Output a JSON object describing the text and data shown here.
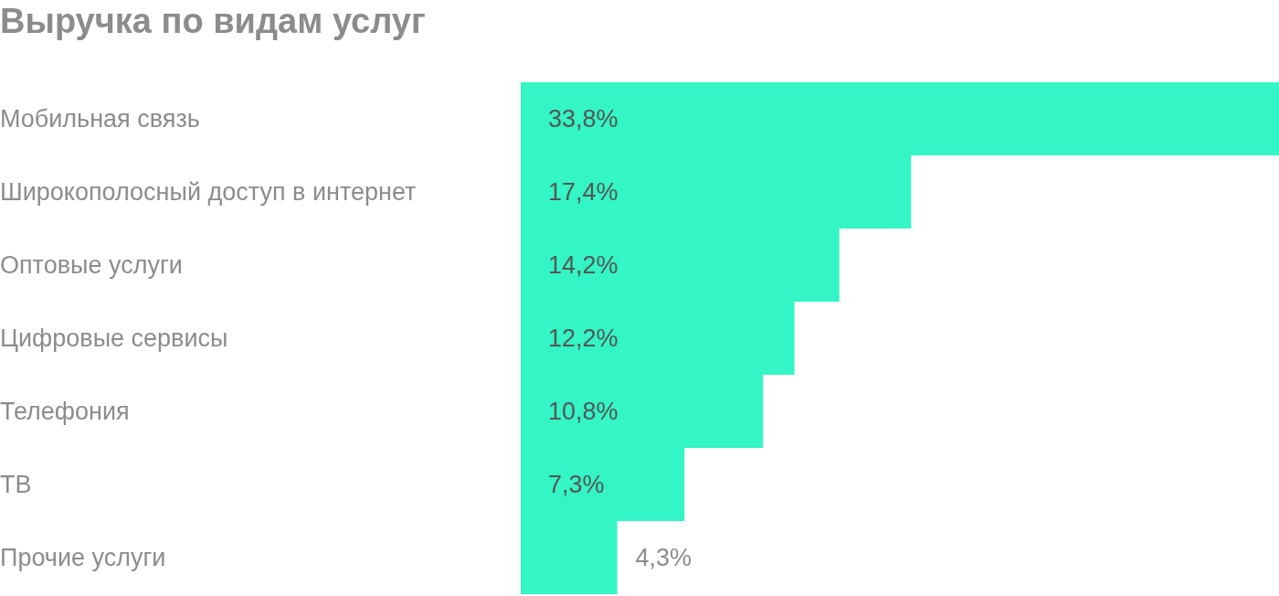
{
  "chart_data": {
    "type": "bar",
    "orientation": "horizontal",
    "title": "Выручка по видам услуг",
    "categories": [
      "Мобильная связь",
      "Широкополосный доступ в интернет",
      "Оптовые услуги",
      "Цифровые сервисы",
      "Телефония",
      "ТВ",
      "Прочие услуги"
    ],
    "values": [
      33.8,
      17.4,
      14.2,
      12.2,
      10.8,
      7.3,
      4.3
    ],
    "value_labels": [
      "33,8%",
      "17,4%",
      "14,2%",
      "12,2%",
      "10,8%",
      "7,3%",
      "4,3%"
    ],
    "color": "#33f5c5",
    "grid": false,
    "legend": false
  }
}
